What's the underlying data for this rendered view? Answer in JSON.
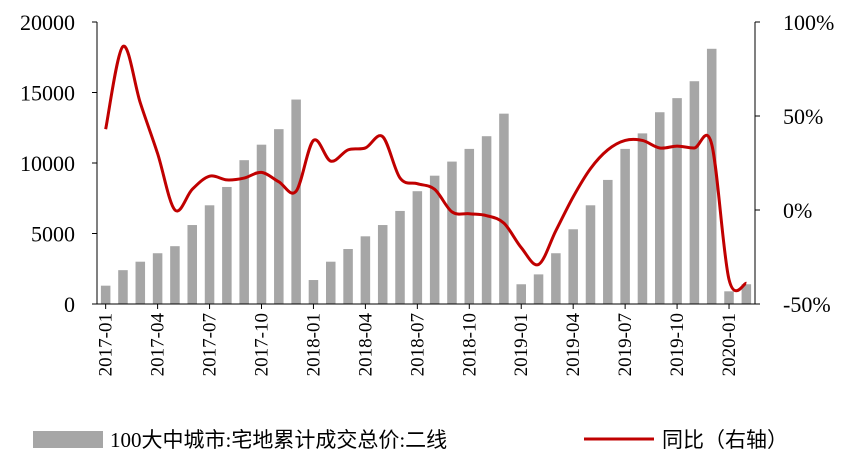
{
  "chart_data": {
    "type": "bar",
    "categories": [
      "2017-01",
      "2017-02",
      "2017-03",
      "2017-04",
      "2017-05",
      "2017-06",
      "2017-07",
      "2017-08",
      "2017-09",
      "2017-10",
      "2017-11",
      "2017-12",
      "2018-01",
      "2018-02",
      "2018-03",
      "2018-04",
      "2018-05",
      "2018-06",
      "2018-07",
      "2018-08",
      "2018-09",
      "2018-10",
      "2018-11",
      "2018-12",
      "2019-01",
      "2019-02",
      "2019-03",
      "2019-04",
      "2019-05",
      "2019-06",
      "2019-07",
      "2019-08",
      "2019-09",
      "2019-10",
      "2019-11",
      "2019-12",
      "2020-01",
      "2020-02"
    ],
    "x_tick_labels": [
      "2017-01",
      "2017-04",
      "2017-07",
      "2017-10",
      "2018-01",
      "2018-04",
      "2018-07",
      "2018-10",
      "2019-01",
      "2019-04",
      "2019-07",
      "2019-10",
      "2020-01"
    ],
    "series": [
      {
        "name": "100大中城市:宅地累计成交总价:二线",
        "type": "bar",
        "axis": "left",
        "color": "#a6a6a6",
        "values": [
          1300,
          2400,
          3000,
          3600,
          4100,
          5600,
          7000,
          8300,
          10200,
          11300,
          12400,
          14500,
          1700,
          3000,
          3900,
          4800,
          5600,
          6600,
          8000,
          9100,
          10100,
          11000,
          11900,
          13500,
          1400,
          2100,
          3600,
          5300,
          7000,
          8800,
          11000,
          12100,
          13600,
          14600,
          15800,
          18100,
          900,
          1400
        ]
      },
      {
        "name": "同比（右轴）",
        "type": "line",
        "axis": "right",
        "color": "#c00000",
        "values": [
          0.43,
          0.87,
          0.57,
          0.3,
          0.0,
          0.11,
          0.18,
          0.16,
          0.17,
          0.2,
          0.15,
          0.1,
          0.37,
          0.26,
          0.32,
          0.33,
          0.39,
          0.17,
          0.14,
          0.11,
          -0.01,
          -0.02,
          -0.03,
          -0.07,
          -0.2,
          -0.29,
          -0.11,
          0.07,
          0.22,
          0.32,
          0.37,
          0.37,
          0.33,
          0.34,
          0.33,
          0.35,
          -0.37,
          -0.39
        ]
      }
    ],
    "y_left": {
      "ylim": [
        0,
        20000
      ],
      "ticks": [
        "0",
        "5000",
        "10000",
        "15000",
        "20000"
      ]
    },
    "y_right": {
      "ylim": [
        -0.5,
        1.0
      ],
      "ticks": [
        "-50%",
        "0%",
        "50%",
        "100%"
      ]
    },
    "legend": {
      "position": "bottom"
    }
  }
}
